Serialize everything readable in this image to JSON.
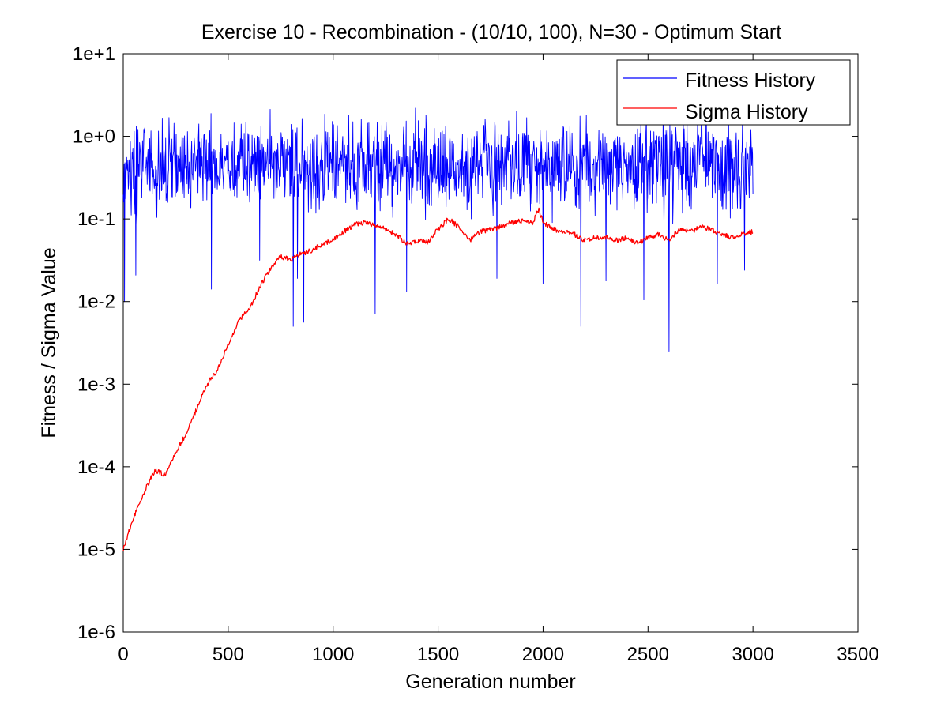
{
  "chart_data": {
    "type": "line",
    "title": "Exercise 10 - Recombination - (10/10, 100), N=30 - Optimum Start",
    "xlabel": "Generation number",
    "ylabel": "Fitness / Sigma Value",
    "xlim": [
      0,
      3500
    ],
    "ylim": [
      1e-06,
      10
    ],
    "y_scale": "log",
    "x_ticks": [
      0,
      500,
      1000,
      1500,
      2000,
      2500,
      3000,
      3500
    ],
    "x_tick_labels": [
      "0",
      "500",
      "1000",
      "1500",
      "2000",
      "2500",
      "3000",
      "3500"
    ],
    "y_ticks": [
      1e-06,
      1e-05,
      0.0001,
      0.001,
      0.01,
      0.1,
      1,
      10
    ],
    "y_tick_labels": [
      "1e-6",
      "1e-5",
      "1e-4",
      "1e-3",
      "1e-2",
      "1e-1",
      "1e+0",
      "1e+1"
    ],
    "grid": false,
    "legend_position": "top-right",
    "series": [
      {
        "name": "Fitness History",
        "color": "#0000ff",
        "style": "noisy",
        "x_range": [
          0,
          3000
        ],
        "center_log10": [
          [
            0,
            -0.4
          ],
          [
            1000,
            -0.35
          ],
          [
            2000,
            -0.35
          ],
          [
            3000,
            -0.35
          ]
        ],
        "spread_log10": 0.55,
        "max_log10": 0.55,
        "min_log10": -2.6,
        "dips": [
          [
            5,
            -2.0
          ],
          [
            60,
            -1.68
          ],
          [
            420,
            -1.85
          ],
          [
            650,
            -1.5
          ],
          [
            810,
            -2.3
          ],
          [
            830,
            -1.72
          ],
          [
            860,
            -2.25
          ],
          [
            1200,
            -2.15
          ],
          [
            1350,
            -1.88
          ],
          [
            1780,
            -1.72
          ],
          [
            2000,
            -1.78
          ],
          [
            2180,
            -2.3
          ],
          [
            2300,
            -1.75
          ],
          [
            2480,
            -1.98
          ],
          [
            2600,
            -2.62
          ],
          [
            2830,
            -1.78
          ],
          [
            2960,
            -1.62
          ]
        ]
      },
      {
        "name": "Sigma History",
        "color": "#ff0000",
        "style": "line",
        "x": [
          0,
          50,
          100,
          150,
          200,
          250,
          300,
          350,
          400,
          450,
          500,
          550,
          600,
          650,
          700,
          750,
          800,
          850,
          900,
          950,
          1000,
          1050,
          1100,
          1150,
          1200,
          1250,
          1300,
          1350,
          1400,
          1450,
          1500,
          1550,
          1600,
          1650,
          1700,
          1750,
          1800,
          1850,
          1900,
          1950,
          1980,
          2000,
          2050,
          2100,
          2150,
          2200,
          2250,
          2300,
          2350,
          2400,
          2450,
          2500,
          2550,
          2600,
          2650,
          2700,
          2750,
          2800,
          2850,
          2900,
          2950,
          3000
        ],
        "y": [
          1e-05,
          2.5e-05,
          5e-05,
          9e-05,
          8e-05,
          0.00015,
          0.00025,
          0.0005,
          0.001,
          0.0015,
          0.003,
          0.006,
          0.008,
          0.015,
          0.025,
          0.035,
          0.032,
          0.038,
          0.042,
          0.05,
          0.055,
          0.07,
          0.085,
          0.09,
          0.085,
          0.075,
          0.065,
          0.05,
          0.055,
          0.052,
          0.075,
          0.1,
          0.08,
          0.055,
          0.07,
          0.075,
          0.08,
          0.09,
          0.095,
          0.09,
          0.13,
          0.09,
          0.075,
          0.07,
          0.065,
          0.055,
          0.06,
          0.06,
          0.055,
          0.06,
          0.05,
          0.06,
          0.065,
          0.055,
          0.075,
          0.07,
          0.08,
          0.075,
          0.065,
          0.06,
          0.065,
          0.07
        ]
      }
    ]
  }
}
